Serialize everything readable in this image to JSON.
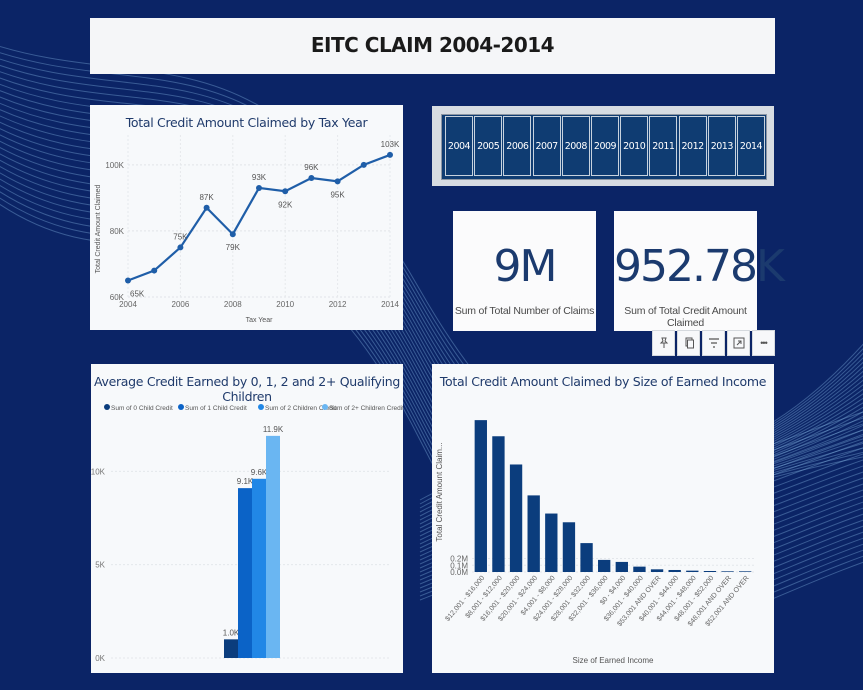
{
  "header": {
    "title": "EITC CLAIM 2004-2014"
  },
  "year_slicer": {
    "years": [
      "2004",
      "2005",
      "2006",
      "2007",
      "2008",
      "2009",
      "2010",
      "2011",
      "2012",
      "2013",
      "2014"
    ]
  },
  "kpis": {
    "claims_value": "9M",
    "claims_label": "Sum of Total Number of Claims",
    "credit_value": "952.78K",
    "credit_label": "Sum of Total Credit Amount Claimed"
  },
  "toolbar": {
    "icons": [
      "pin-icon",
      "copy-icon",
      "filter-icon",
      "focus-mode-icon",
      "more-options-icon"
    ],
    "more_label": "•••"
  },
  "colors": {
    "background": "#0b2466",
    "line": "#1f5ea8",
    "bar_dark": "#0b3d7d",
    "series": [
      "#0b3d7d",
      "#0b63c7",
      "#2187e6",
      "#6ab6f2"
    ]
  },
  "chart_data": [
    {
      "type": "line",
      "title": "Total Credit Amount Claimed by Tax Year",
      "xlabel": "Tax Year",
      "ylabel": "Total Credit Amount Claimed",
      "x": [
        2004,
        2005,
        2006,
        2007,
        2008,
        2009,
        2010,
        2011,
        2012,
        2013,
        2014
      ],
      "values": [
        65,
        68,
        75,
        87,
        79,
        93,
        92,
        96,
        95,
        100,
        103
      ],
      "point_labels": [
        "65K",
        "",
        "75K",
        "87K",
        "79K",
        "93K",
        "92K",
        "96K",
        "95K",
        "",
        "103K"
      ],
      "x_ticks": [
        "2004",
        "2006",
        "2008",
        "2010",
        "2012",
        "2014"
      ],
      "y_ticks": [
        "60K",
        "80K",
        "100K"
      ],
      "ylim": [
        60,
        106
      ],
      "grid": true
    },
    {
      "type": "bar",
      "title": "Average Credit Earned by 0, 1, 2 and 2+ Qualifying Children",
      "legend_position": "top",
      "series": [
        {
          "name": "Sum of 0 Child Credit",
          "values": [
            1.0
          ],
          "label": "1.0K"
        },
        {
          "name": "Sum of 1 Child Credit",
          "values": [
            9.1
          ],
          "label": "9.1K"
        },
        {
          "name": "Sum of 2 Children Credit",
          "values": [
            9.6
          ],
          "label": "9.6K"
        },
        {
          "name": "Sum of 2+ Children Credit",
          "values": [
            11.9
          ],
          "label": "11.9K"
        }
      ],
      "y_ticks": [
        "0K",
        "5K",
        "10K"
      ],
      "ylim": [
        0,
        12
      ],
      "grid": true
    },
    {
      "type": "bar",
      "title": "Total Credit Amount Claimed by Size of Earned Income",
      "xlabel": "Size of Earned Income",
      "ylabel": "Total Credit Amount Claim...",
      "categories": [
        "$12,001 - $16,000",
        "$8,001 - $12,000",
        "$16,001 - $20,000",
        "$20,001 - $24,000",
        "$4,001 - $8,000",
        "$24,001 - $28,000",
        "$28,001 - $32,000",
        "$32,001 - $36,000",
        "$0 - $4,000",
        "$36,001 - $40,000",
        "$53,001 AND OVER",
        "$40,001 - $44,000",
        "$44,001 - $48,000",
        "$48,001 - $52,000",
        "$48,001 AND OVER",
        "$52,001 AND OVER"
      ],
      "values": [
        0.226,
        0.202,
        0.16,
        0.114,
        0.087,
        0.074,
        0.043,
        0.018,
        0.015,
        0.008,
        0.004,
        0.003,
        0.002,
        0.0015,
        0.001,
        0.001
      ],
      "y_ticks": [
        "0.0M",
        "0.1M",
        "0.2M"
      ],
      "ylim": [
        0,
        0.25
      ],
      "grid": true
    }
  ]
}
